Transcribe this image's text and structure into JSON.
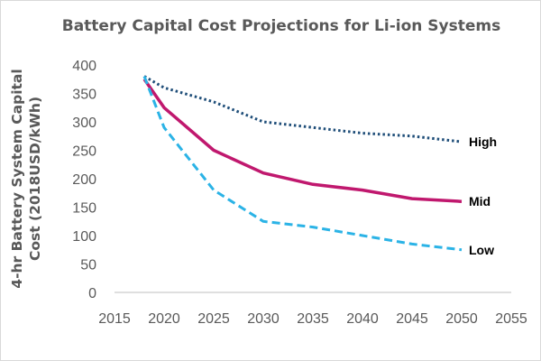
{
  "chart_data": {
    "type": "line",
    "title": "Battery Capital Cost Projections for Li-ion Systems",
    "xlabel": "",
    "ylabel_lines": [
      "4-hr Battery System Capital",
      "Cost (2018USD/kWh)"
    ],
    "xlim": [
      2015,
      2055
    ],
    "ylim": [
      0,
      400
    ],
    "x_ticks": [
      "2015",
      "2020",
      "2025",
      "2030",
      "2035",
      "2040",
      "2045",
      "2050",
      "2055"
    ],
    "y_ticks": [
      "0",
      "50",
      "100",
      "150",
      "200",
      "250",
      "300",
      "350",
      "400"
    ],
    "grid": false,
    "legend": "inline labels at right end of each series",
    "series": [
      {
        "name": "High",
        "color": "#1f4e79",
        "style": "dotted",
        "x": [
          2018,
          2020,
          2025,
          2030,
          2035,
          2040,
          2045,
          2050
        ],
        "values": [
          380,
          360,
          335,
          300,
          290,
          280,
          275,
          265
        ]
      },
      {
        "name": "Mid",
        "color": "#c0186e",
        "style": "solid",
        "x": [
          2018,
          2020,
          2025,
          2030,
          2035,
          2040,
          2045,
          2050
        ],
        "values": [
          375,
          325,
          250,
          210,
          190,
          180,
          165,
          160
        ]
      },
      {
        "name": "Low",
        "color": "#2bb3e6",
        "style": "dashed",
        "x": [
          2018,
          2020,
          2025,
          2030,
          2035,
          2040,
          2045,
          2050
        ],
        "values": [
          380,
          290,
          180,
          125,
          115,
          100,
          85,
          75
        ]
      }
    ]
  }
}
